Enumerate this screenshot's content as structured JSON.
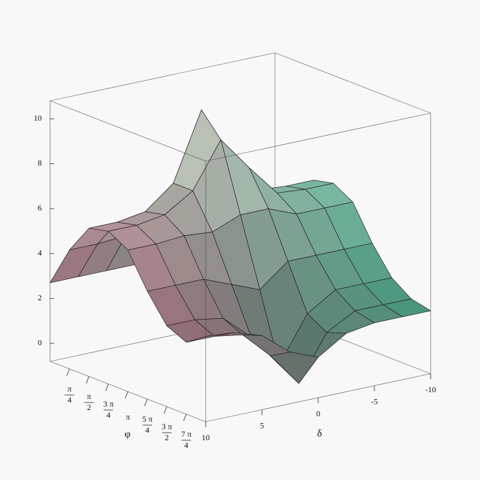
{
  "chart_data": {
    "type": "surface",
    "x_label": "φ",
    "y_label": "δ",
    "x": [
      0,
      0.7854,
      1.5708,
      2.3562,
      3.1416,
      3.927,
      4.7124,
      5.4978,
      6.2832
    ],
    "y": [
      10,
      7.5,
      5,
      2.5,
      0,
      -2.5,
      -5,
      -7.5,
      -10
    ],
    "z": [
      [
        2.7,
        4.5,
        5.8,
        6.0,
        5.5,
        4.0,
        2.8,
        2.4,
        3.0
      ],
      [
        2.7,
        4.5,
        5.8,
        6.0,
        5.5,
        4.0,
        2.8,
        2.4,
        2.9
      ],
      [
        2.7,
        4.6,
        6.0,
        6.2,
        5.6,
        4.0,
        2.6,
        2.2,
        2.5
      ],
      [
        2.7,
        5.0,
        7.0,
        7.0,
        5.5,
        3.5,
        1.5,
        1.0,
        1.5
      ],
      [
        2.7,
        7.0,
        10.0,
        9.0,
        6.0,
        3.0,
        0.0,
        -0.5,
        1.0
      ],
      [
        2.7,
        5.0,
        7.0,
        7.5,
        6.0,
        4.0,
        2.0,
        1.5,
        1.8
      ],
      [
        2.5,
        4.5,
        5.9,
        6.1,
        5.5,
        4.0,
        2.8,
        2.2,
        2.0
      ],
      [
        2.5,
        4.5,
        5.8,
        6.0,
        5.5,
        4.0,
        2.8,
        2.2,
        2.0
      ],
      [
        2.5,
        4.5,
        5.8,
        6.0,
        5.5,
        4.0,
        2.8,
        2.2,
        2.0
      ]
    ],
    "xlim": [
      0,
      6.2832
    ],
    "ylim": [
      10,
      -10
    ],
    "zlim": [
      -0.8,
      10.8
    ],
    "xticks": [
      {
        "value": 0.7854,
        "label": "π/4"
      },
      {
        "value": 1.5708,
        "label": "π/2"
      },
      {
        "value": 2.3562,
        "label": "3 π/4"
      },
      {
        "value": 3.1416,
        "label": "π"
      },
      {
        "value": 3.927,
        "label": "5 π/4"
      },
      {
        "value": 4.7124,
        "label": "3 π/2"
      },
      {
        "value": 5.4978,
        "label": "7 π/4"
      }
    ],
    "yticks": [
      10,
      5,
      0,
      -5,
      -10
    ],
    "zticks": [
      0,
      2,
      4,
      6,
      8,
      10
    ],
    "colors": [
      "#a86a7c",
      "#f4f4e6",
      "#3fb08e"
    ]
  }
}
